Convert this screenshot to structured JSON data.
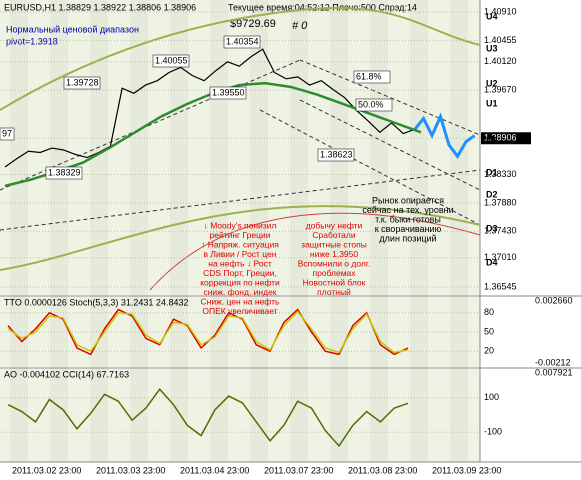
{
  "header": {
    "symbol_line": "EURUSD,H1  1.38829 1.38922 1.38806 1.38906",
    "server_line": "Текущее время:04:52:12 Плечо:500 Спрэд:14",
    "range_label": "Нормальный ценовой диапазон",
    "pivot_label": "pivot=1.3918",
    "balance": "$9729.69",
    "orders": "# 0"
  },
  "price_labels": [
    "1.40354",
    "1.40055",
    "1.39728",
    "1.39550",
    "1.38329",
    "1.38623",
    "61.8%",
    "50.0%",
    "97"
  ],
  "levels": [
    "U4",
    "U3",
    "U2",
    "U1",
    "LB",
    "D1",
    "D2",
    "D3",
    "D4"
  ],
  "annotations": [
    "↓   Moody's понизил",
    "рейтинг Греции",
    "↑   Напряж. ситуация",
    "в Ливии / Рост цен",
    "на нефть ↓    Рост",
    "CDS  Порт, Греции,",
    "коррекция по нефти",
    "сниж. фонд. индек",
    "Сниж. цен на нефть",
    "ОПЕК увеличивает",
    "добычу нефти",
    "Сработали",
    "защитные стопы",
    "ниже 1,3950",
    "Вспомнили о долг.",
    "проблемах",
    "Новостной блок",
    "плотный",
    "Рынок опирается",
    "сейчас на тех. уровни",
    "т.к. быки готовы",
    "к сворачиванию",
    "длин позиций"
  ],
  "x_labels": [
    "2011.03.02 23:00",
    "2011.03.03 23:00",
    "2011.03.04 23:00",
    "2011.03.07 23:00",
    "2011.03.08 23:00",
    "2011.03.09 23:00"
  ],
  "chart_data": [
    {
      "type": "line",
      "ylim": [
        1.36545,
        1.4091
      ],
      "yticks": [
        {
          "value": 1.4091,
          "label": "1.40910"
        },
        1.40455,
        {
          "value": 1.4012,
          "label": "1.40120"
        },
        {
          "value": 1.3967,
          "label": "1.39670"
        },
        1.38906,
        {
          "value": 1.3833,
          "label": "1.38330"
        },
        {
          "value": 1.3788,
          "label": "1.37880"
        },
        {
          "value": 1.3743,
          "label": "1.37430"
        },
        {
          "value": 1.3701,
          "label": "1.37010"
        },
        1.36545
      ],
      "highlight_tick": 4,
      "series": [
        {
          "color": "#000000",
          "values": [
            1.3845,
            1.3858,
            1.387,
            1.3868,
            1.3875,
            1.3872,
            1.3865,
            1.386,
            1.3868,
            1.3878,
            1.397,
            1.3962,
            1.3975,
            1.3982,
            1.3995,
            1.4003,
            1.399,
            1.3982,
            1.3998,
            1.4012,
            1.4005,
            1.402,
            1.4032,
            1.3995,
            1.3985,
            1.3988,
            1.3975,
            1.3982,
            1.3968,
            1.3955,
            1.3935,
            1.3918,
            1.39,
            1.3915,
            1.3898,
            1.3905
          ]
        },
        {
          "color": "#1e90ff",
          "values": [
            1.3905,
            1.3922,
            1.3895,
            1.3925,
            1.388,
            1.3862,
            1.3885,
            1.3895
          ]
        },
        {
          "color": "#2e8b2e",
          "values": [
            1.3815,
            1.3825,
            1.3838,
            1.3852,
            1.3875,
            1.39,
            1.3925,
            1.3945,
            1.3962,
            1.3975,
            1.3978,
            1.3972,
            1.396,
            1.3945,
            1.393,
            1.3915,
            1.39
          ]
        }
      ]
    },
    {
      "type": "line",
      "ylim": [
        0,
        100
      ],
      "yticks": [
        20,
        50,
        80
      ],
      "side_labels": [
        "TTO 0.0000126  Stoch(5,3,3) 31.2431 24.8432",
        "0.002660",
        "-0.00212"
      ],
      "series": [
        {
          "color": "#e00000",
          "values": [
            60,
            35,
            55,
            80,
            70,
            25,
            15,
            55,
            85,
            75,
            40,
            30,
            70,
            60,
            25,
            45,
            80,
            70,
            30,
            20,
            65,
            85,
            50,
            20,
            15,
            60,
            80,
            30,
            15,
            25
          ]
        },
        {
          "color": "#c8c800",
          "values": [
            55,
            40,
            50,
            75,
            72,
            30,
            20,
            50,
            80,
            78,
            45,
            32,
            65,
            62,
            30,
            42,
            75,
            72,
            35,
            22,
            60,
            82,
            55,
            25,
            18,
            55,
            78,
            35,
            18,
            22
          ]
        }
      ]
    },
    {
      "type": "line",
      "ylim": [
        -250,
        250
      ],
      "yticks": [
        100,
        -100
      ],
      "side_labels": [
        "AO -0.004102  CCI(14) 67.7163",
        "0.007921"
      ],
      "series": [
        {
          "color": "#556b00",
          "values": [
            60,
            20,
            -40,
            90,
            30,
            -80,
            10,
            120,
            80,
            -30,
            40,
            150,
            60,
            -60,
            -120,
            30,
            110,
            70,
            -40,
            -150,
            -60,
            80,
            40,
            -90,
            -180,
            -60,
            20,
            -40,
            40,
            68
          ]
        }
      ]
    }
  ]
}
